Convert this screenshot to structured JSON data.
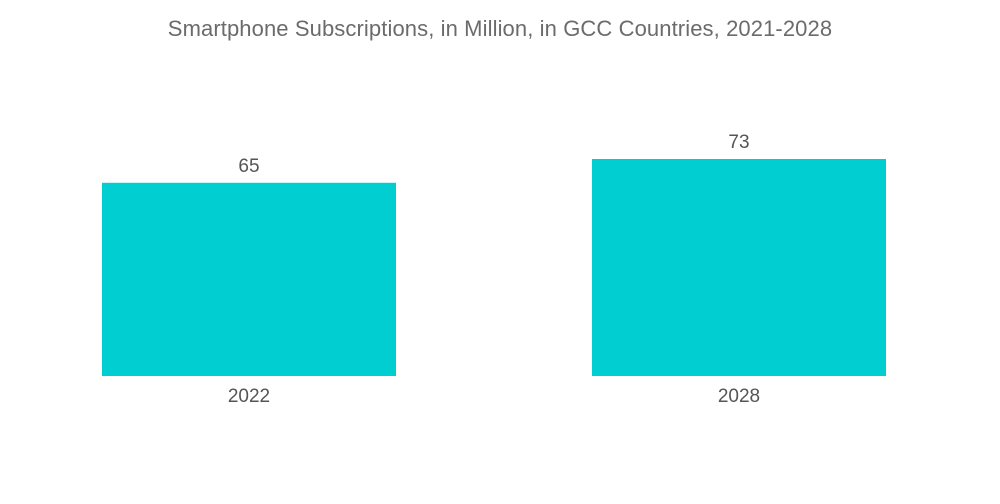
{
  "chart_data": {
    "type": "bar",
    "title": "Smartphone Subscriptions, in Million, in GCC Countries, 2021-2028",
    "categories": [
      "2022",
      "2028"
    ],
    "values": [
      65,
      73
    ],
    "data_labels": [
      "65",
      "73"
    ],
    "xlabel": "",
    "ylabel": "",
    "ylim": [
      0,
      73
    ],
    "grid": false,
    "legend": "none",
    "bar_color": "#00CED1"
  }
}
